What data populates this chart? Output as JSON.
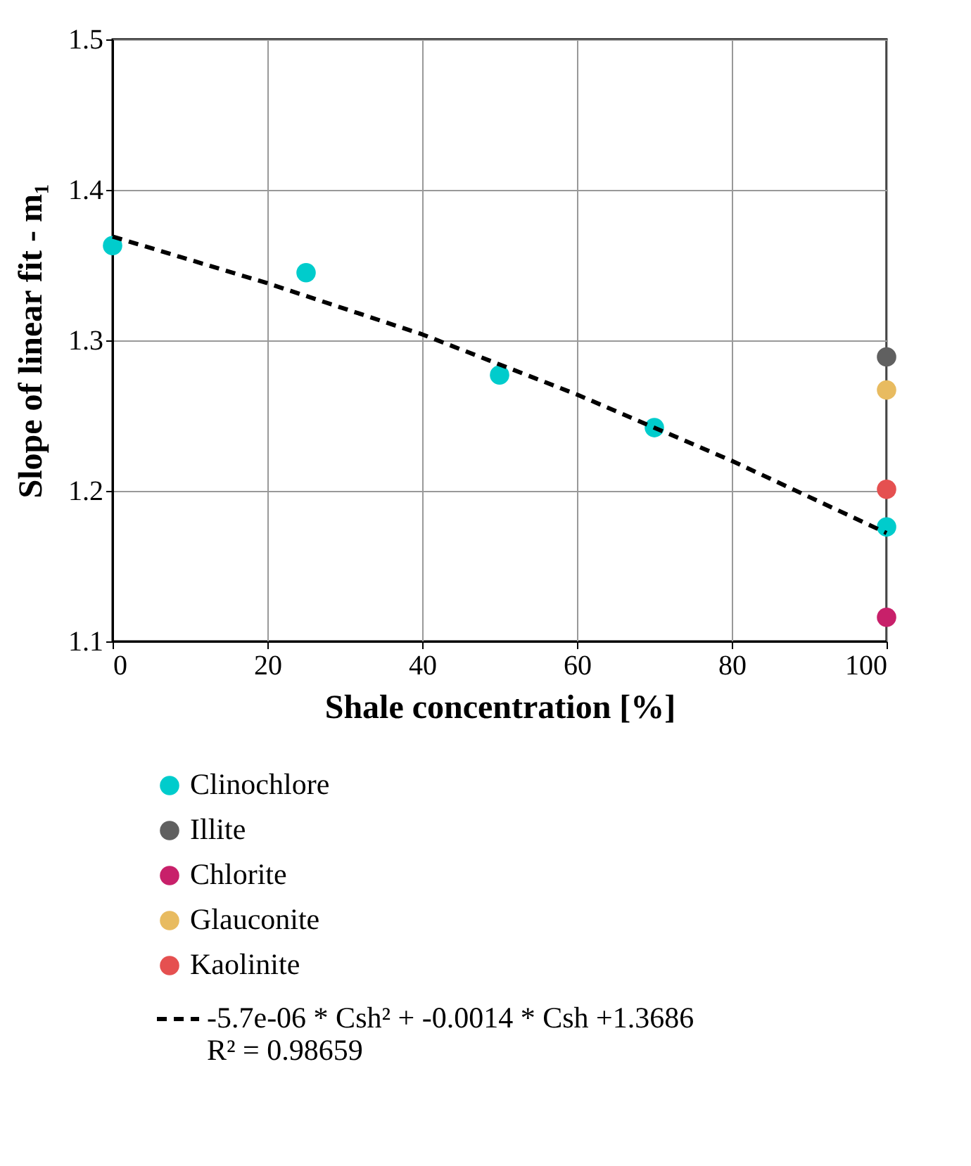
{
  "chart_data": {
    "type": "scatter",
    "xlabel": "Shale concentration [%]",
    "ylabel": "Slope of linear fit - m₁",
    "xlim": [
      0,
      100
    ],
    "ylim": [
      1.1,
      1.5
    ],
    "xticks": [
      0,
      20,
      40,
      60,
      80,
      100
    ],
    "yticks": [
      1.1,
      1.2,
      1.3,
      1.4,
      1.5
    ],
    "grid": true,
    "legend": "bottom",
    "marker": "circle",
    "series": [
      {
        "name": "Clinochlore",
        "color": "#00cccc",
        "x": [
          0,
          25,
          50,
          70,
          100
        ],
        "values": [
          1.363,
          1.345,
          1.277,
          1.242,
          1.176
        ]
      },
      {
        "name": "Illite",
        "color": "#606060",
        "x": [
          100
        ],
        "values": [
          1.289
        ]
      },
      {
        "name": "Chlorite",
        "color": "#c8206a",
        "x": [
          100
        ],
        "values": [
          1.116
        ]
      },
      {
        "name": "Glauconite",
        "color": "#e8bb60",
        "x": [
          100
        ],
        "values": [
          1.267
        ]
      },
      {
        "name": "Kaolinite",
        "color": "#e55050",
        "x": [
          100
        ],
        "values": [
          1.201
        ]
      },
      {
        "name": "-5.7e-06 * Csh² + -0.0014 * Csh +1.3686\nR² = 0.98659",
        "type": "line",
        "line_style": "dashed",
        "marker": "none",
        "color": "#000000",
        "x": [
          0,
          20,
          40,
          60,
          80,
          100
        ],
        "values": [
          1.369,
          1.338,
          1.304,
          1.264,
          1.22,
          1.172
        ]
      }
    ]
  }
}
